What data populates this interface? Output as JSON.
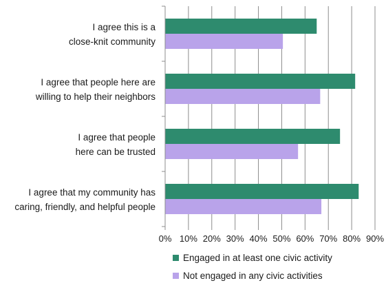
{
  "chart_data": {
    "type": "bar",
    "orientation": "horizontal",
    "title": "",
    "xlabel": "",
    "ylabel": "",
    "categories": [
      [
        "I agree this is a",
        "close-knit community"
      ],
      [
        "I agree that people here are",
        "willing to help their neighbors"
      ],
      [
        "I agree that people",
        "here can be trusted"
      ],
      [
        "I agree that my community has",
        "caring, friendly, and helpful people"
      ]
    ],
    "series": [
      {
        "name": "Engaged in at least one civic activity",
        "color": "#2e8b6e",
        "values": [
          65,
          81.5,
          75,
          83
        ]
      },
      {
        "name": "Not engaged in any civic activities",
        "color": "#b9a3ea",
        "values": [
          50.5,
          66.5,
          57,
          67
        ]
      }
    ],
    "xlim": [
      0,
      90
    ],
    "ticks": [
      "0%",
      "10%",
      "20%",
      "30%",
      "40%",
      "50%",
      "60%",
      "70%",
      "80%",
      "90%"
    ],
    "grid": "vertical",
    "legend_position": "bottom"
  }
}
